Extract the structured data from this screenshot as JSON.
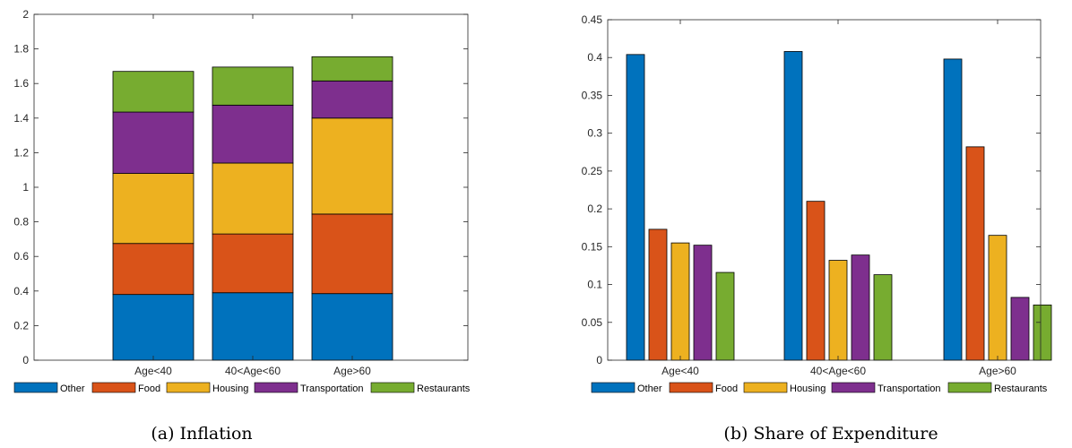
{
  "colors": {
    "Other": "#0072BD",
    "Food": "#D95319",
    "Housing": "#EDB120",
    "Transportation": "#7E2F8E",
    "Restaurants": "#77AC30"
  },
  "chart_data": [
    {
      "type": "bar",
      "stacked": true,
      "caption": "(a) Inflation",
      "categories": [
        "Age<40",
        "40<Age<60",
        "Age>60"
      ],
      "ylim": [
        0,
        2
      ],
      "yticks": [
        "0",
        "0.2",
        "0.4",
        "0.6",
        "0.8",
        "1",
        "1.2",
        "1.4",
        "1.6",
        "1.8",
        "2"
      ],
      "grid": false,
      "legend": "bottom",
      "series": [
        {
          "name": "Other",
          "values": [
            0.38,
            0.39,
            0.385
          ]
        },
        {
          "name": "Food",
          "values": [
            0.295,
            0.34,
            0.46
          ]
        },
        {
          "name": "Housing",
          "values": [
            0.405,
            0.41,
            0.555
          ]
        },
        {
          "name": "Transportation",
          "values": [
            0.355,
            0.335,
            0.215
          ]
        },
        {
          "name": "Restaurants",
          "values": [
            0.235,
            0.22,
            0.14
          ]
        }
      ]
    },
    {
      "type": "bar",
      "stacked": false,
      "caption": "(b) Share of Expenditure",
      "categories": [
        "Age<40",
        "40<Age<60",
        "Age>60"
      ],
      "ylim": [
        0,
        0.45
      ],
      "yticks": [
        "0",
        "0.05",
        "0.1",
        "0.15",
        "0.2",
        "0.25",
        "0.3",
        "0.35",
        "0.4",
        "0.45"
      ],
      "grid": false,
      "legend": "bottom",
      "series": [
        {
          "name": "Other",
          "values": [
            0.404,
            0.408,
            0.398
          ]
        },
        {
          "name": "Food",
          "values": [
            0.173,
            0.21,
            0.282
          ]
        },
        {
          "name": "Housing",
          "values": [
            0.155,
            0.132,
            0.165
          ]
        },
        {
          "name": "Transportation",
          "values": [
            0.152,
            0.139,
            0.083
          ]
        },
        {
          "name": "Restaurants",
          "values": [
            0.116,
            0.113,
            0.073
          ]
        }
      ]
    }
  ]
}
